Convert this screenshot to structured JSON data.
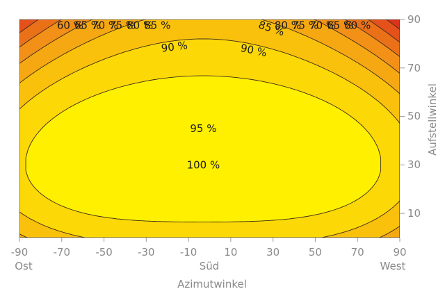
{
  "chart_data": {
    "type": "heatmap",
    "xlabel": "Azimutwinkel",
    "ylabel": "Aufstellwinkel",
    "xlim": [
      -90,
      90
    ],
    "ylim": [
      0,
      90
    ],
    "x_ticks": [
      -90,
      -70,
      -50,
      -30,
      -10,
      10,
      30,
      50,
      70,
      90
    ],
    "y_ticks": [
      10,
      30,
      50,
      70,
      90
    ],
    "x_direction_labels": [
      {
        "x": -90,
        "text": "Ost"
      },
      {
        "x": 0,
        "text": "Süd"
      },
      {
        "x": 90,
        "text": "West"
      }
    ],
    "contours": [
      {
        "level": 60,
        "label": "60 %"
      },
      {
        "level": 65,
        "label": "65 %"
      },
      {
        "level": 70,
        "label": "70 %"
      },
      {
        "level": 75,
        "label": "75 %"
      },
      {
        "level": 80,
        "label": "80 %"
      },
      {
        "level": 85,
        "label": "85 %"
      },
      {
        "level": 90,
        "label": "90 %"
      },
      {
        "level": 95,
        "label": "95 %"
      },
      {
        "level": 100,
        "label": "100 %"
      }
    ],
    "max_point": {
      "x": -3,
      "y": 30,
      "value": 100
    },
    "colors": {
      "low": "#d5121c",
      "mid": "#f29018",
      "high": "#fff000",
      "peak": "#fffbe0"
    }
  }
}
